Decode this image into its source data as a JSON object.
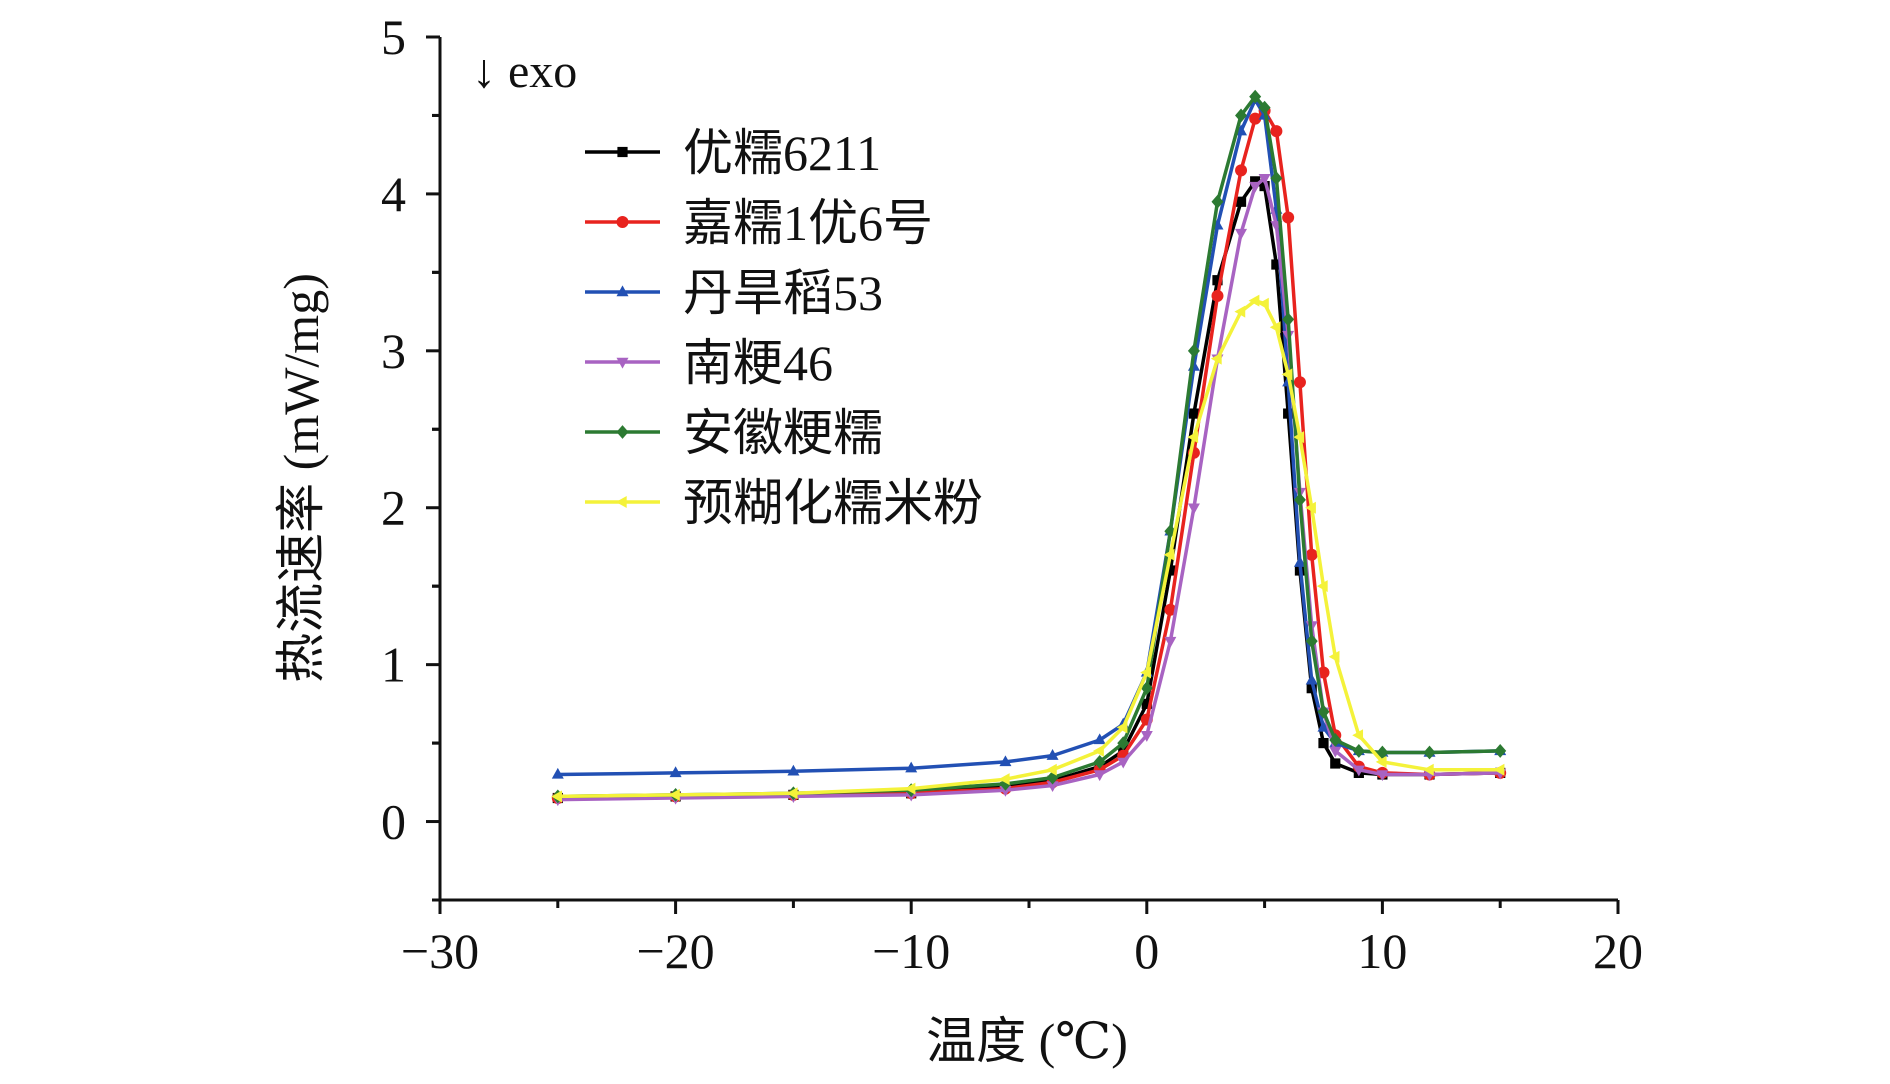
{
  "chart_data": {
    "type": "line",
    "title": "",
    "xlabel": "温度 (℃)",
    "ylabel": "热流速率 (mW/mg)",
    "annotation": "↓ exo",
    "xlim": [
      -30,
      20
    ],
    "ylim": [
      -0.5,
      5
    ],
    "xticks": [
      -30,
      -20,
      -10,
      0,
      10,
      20
    ],
    "xtick_labels": [
      "−30",
      "−20",
      "−10",
      "0",
      "10",
      "20"
    ],
    "yticks": [
      0,
      1,
      2,
      3,
      4,
      5
    ],
    "ytick_labels": [
      "0",
      "1",
      "2",
      "3",
      "4",
      "5"
    ],
    "grid": false,
    "legend_position": "top-left",
    "series": [
      {
        "name": "优糯6211",
        "color": "#000000",
        "marker": "square",
        "x": [
          -25,
          -20,
          -15,
          -10,
          -6,
          -4,
          -2,
          -1,
          0,
          1,
          2,
          3,
          4,
          4.6,
          5,
          5.5,
          6,
          6.5,
          7,
          7.5,
          8,
          9,
          10,
          12,
          15
        ],
        "y": [
          0.15,
          0.16,
          0.17,
          0.18,
          0.22,
          0.26,
          0.35,
          0.45,
          0.75,
          1.6,
          2.6,
          3.45,
          3.95,
          4.08,
          4.05,
          3.55,
          2.6,
          1.6,
          0.85,
          0.5,
          0.37,
          0.31,
          0.3,
          0.3,
          0.31
        ]
      },
      {
        "name": "嘉糯1优6号",
        "color": "#e8231e",
        "marker": "circle",
        "x": [
          -25,
          -20,
          -15,
          -10,
          -6,
          -4,
          -2,
          -1,
          0,
          1,
          2,
          3,
          4,
          4.6,
          5,
          5.5,
          6,
          6.5,
          7,
          7.5,
          8,
          9,
          10,
          12,
          15
        ],
        "y": [
          0.15,
          0.16,
          0.17,
          0.18,
          0.21,
          0.25,
          0.33,
          0.42,
          0.65,
          1.35,
          2.35,
          3.35,
          4.15,
          4.48,
          4.53,
          4.4,
          3.85,
          2.8,
          1.7,
          0.95,
          0.55,
          0.35,
          0.31,
          0.3,
          0.31
        ]
      },
      {
        "name": "丹旱稻53",
        "color": "#2250b4",
        "marker": "triangle-up",
        "x": [
          -25,
          -20,
          -15,
          -10,
          -6,
          -4,
          -2,
          -1,
          0,
          1,
          2,
          3,
          4,
          4.6,
          5,
          5.5,
          6,
          6.5,
          7,
          7.5,
          8,
          9,
          10,
          12,
          15
        ],
        "y": [
          0.3,
          0.31,
          0.32,
          0.34,
          0.38,
          0.42,
          0.52,
          0.62,
          0.95,
          1.85,
          2.9,
          3.8,
          4.4,
          4.6,
          4.5,
          3.9,
          2.8,
          1.65,
          0.9,
          0.6,
          0.5,
          0.45,
          0.44,
          0.44,
          0.45
        ]
      },
      {
        "name": "南粳46",
        "color": "#a863c2",
        "marker": "triangle-down",
        "x": [
          -25,
          -20,
          -15,
          -10,
          -6,
          -4,
          -2,
          -1,
          0,
          1,
          2,
          3,
          4,
          4.6,
          5,
          5.5,
          6,
          6.5,
          7,
          7.5,
          8,
          9,
          10,
          12,
          15
        ],
        "y": [
          0.14,
          0.15,
          0.16,
          0.17,
          0.2,
          0.23,
          0.3,
          0.38,
          0.55,
          1.15,
          2.0,
          2.95,
          3.75,
          4.05,
          4.1,
          3.8,
          3.1,
          2.1,
          1.25,
          0.7,
          0.45,
          0.33,
          0.3,
          0.3,
          0.31
        ]
      },
      {
        "name": "安徽粳糯",
        "color": "#2c7a32",
        "marker": "diamond",
        "x": [
          -25,
          -20,
          -15,
          -10,
          -6,
          -4,
          -2,
          -1,
          0,
          1,
          2,
          3,
          4,
          4.6,
          5,
          5.5,
          6,
          6.5,
          7,
          7.5,
          8,
          9,
          10,
          12,
          15
        ],
        "y": [
          0.16,
          0.17,
          0.18,
          0.2,
          0.24,
          0.28,
          0.38,
          0.5,
          0.85,
          1.85,
          3.0,
          3.95,
          4.5,
          4.62,
          4.55,
          4.1,
          3.2,
          2.05,
          1.15,
          0.7,
          0.52,
          0.45,
          0.44,
          0.44,
          0.45
        ]
      },
      {
        "name": "预糊化糯米粉",
        "color": "#f4f23a",
        "marker": "triangle-left",
        "x": [
          -25,
          -20,
          -15,
          -10,
          -6,
          -4,
          -2,
          -1,
          0,
          1,
          2,
          3,
          4,
          4.6,
          5,
          5.5,
          6,
          6.5,
          7,
          7.5,
          8,
          9,
          10,
          12,
          15
        ],
        "y": [
          0.16,
          0.17,
          0.18,
          0.21,
          0.27,
          0.33,
          0.45,
          0.6,
          0.95,
          1.7,
          2.45,
          2.95,
          3.25,
          3.32,
          3.3,
          3.15,
          2.85,
          2.45,
          2.0,
          1.5,
          1.05,
          0.55,
          0.38,
          0.33,
          0.33
        ]
      }
    ]
  }
}
